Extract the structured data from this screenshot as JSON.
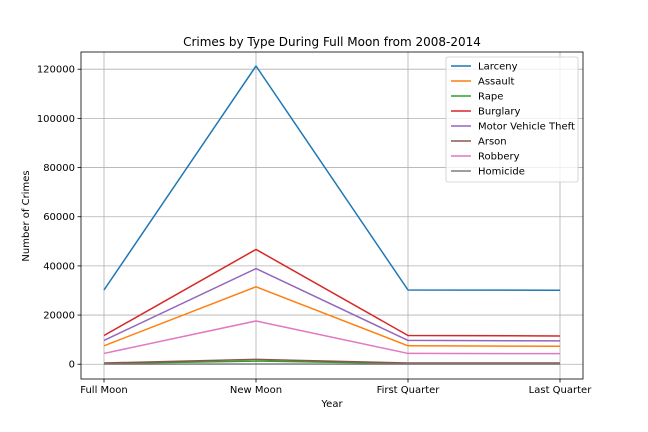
{
  "chart_data": {
    "type": "line",
    "title": "Crimes by Type During Full Moon from 2008-2014",
    "xlabel": "Year",
    "ylabel": "Number of Crimes",
    "categories": [
      "Full Moon",
      "New Moon",
      "First Quarter",
      "Last Quarter"
    ],
    "ylim": [
      -6000,
      127000
    ],
    "yticks": [
      0,
      20000,
      40000,
      60000,
      80000,
      100000,
      120000
    ],
    "ytick_labels": [
      "0",
      "20000",
      "40000",
      "60000",
      "80000",
      "100000",
      "120000"
    ],
    "grid": true,
    "legend_position": "top-right",
    "series": [
      {
        "name": "Larceny",
        "color": "#1f77b4",
        "values": [
          30200,
          121300,
          30200,
          30100
        ]
      },
      {
        "name": "Assault",
        "color": "#ff7f0e",
        "values": [
          7500,
          31500,
          7500,
          7300
        ]
      },
      {
        "name": "Rape",
        "color": "#2ca02c",
        "values": [
          300,
          1300,
          300,
          300
        ]
      },
      {
        "name": "Burglary",
        "color": "#d62728",
        "values": [
          11700,
          46700,
          11700,
          11500
        ]
      },
      {
        "name": "Motor Vehicle Theft",
        "color": "#9467bd",
        "values": [
          9700,
          38900,
          9700,
          9500
        ]
      },
      {
        "name": "Arson",
        "color": "#8c564b",
        "values": [
          500,
          2000,
          500,
          500
        ]
      },
      {
        "name": "Robbery",
        "color": "#e377c2",
        "values": [
          4400,
          17600,
          4400,
          4300
        ]
      },
      {
        "name": "Homicide",
        "color": "#7f7f7f",
        "values": [
          30,
          120,
          30,
          30
        ]
      }
    ]
  }
}
